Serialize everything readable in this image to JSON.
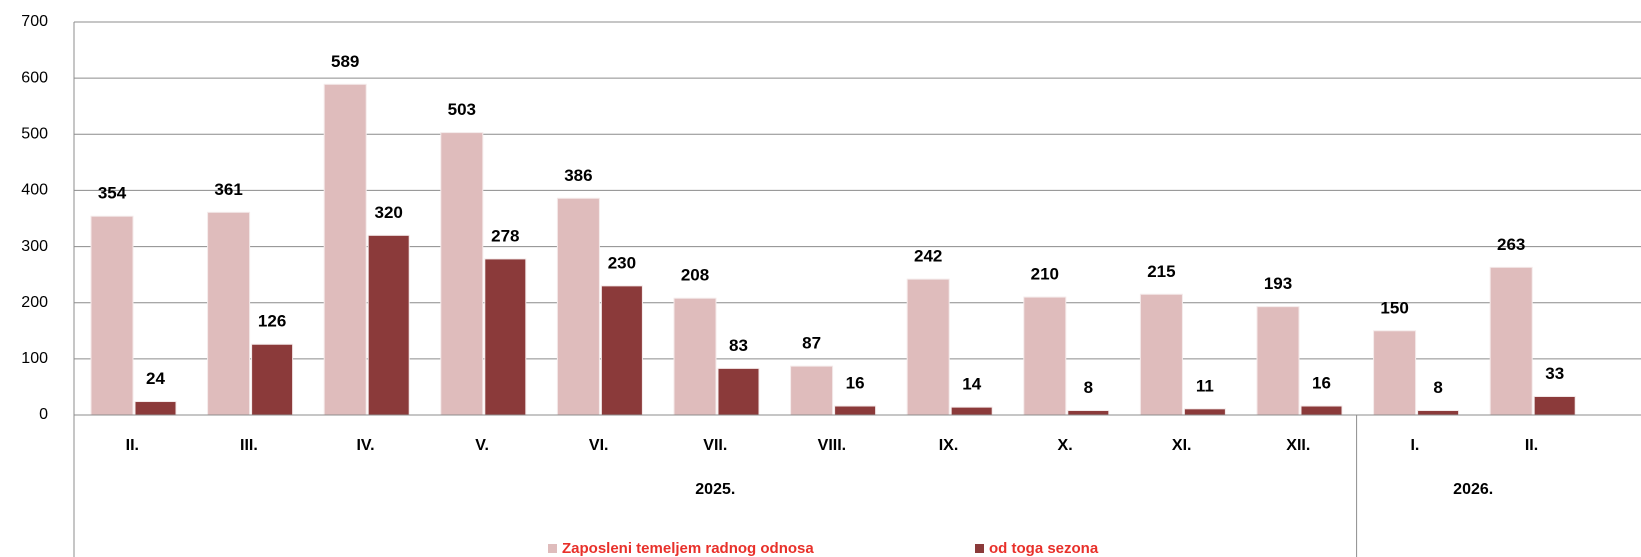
{
  "chart_data": {
    "type": "bar",
    "categories": [
      "II.",
      "III.",
      "IV.",
      "V.",
      "VI.",
      "VII.",
      "VIII.",
      "IX.",
      "X.",
      "XI.",
      "XII.",
      "I.",
      "II."
    ],
    "category_groups": [
      "2025.",
      "2025.",
      "2025.",
      "2025.",
      "2025.",
      "2025.",
      "2025.",
      "2025.",
      "2025.",
      "2025.",
      "2025.",
      "2026.",
      "2026."
    ],
    "series": [
      {
        "name": "Zaposleni temeljem radnog odnosa",
        "color": "#dfbcbc",
        "values": [
          354,
          361,
          589,
          503,
          386,
          208,
          87,
          242,
          210,
          215,
          193,
          150,
          263
        ]
      },
      {
        "name": "od toga sezona",
        "color": "#8b3a3a",
        "values": [
          24,
          126,
          320,
          278,
          230,
          83,
          16,
          14,
          8,
          11,
          16,
          8,
          33
        ]
      }
    ],
    "ylim": [
      0,
      700
    ],
    "yticks": [
      0,
      100,
      200,
      300,
      400,
      500,
      600,
      700
    ],
    "grid": true,
    "legend": "bottom"
  }
}
